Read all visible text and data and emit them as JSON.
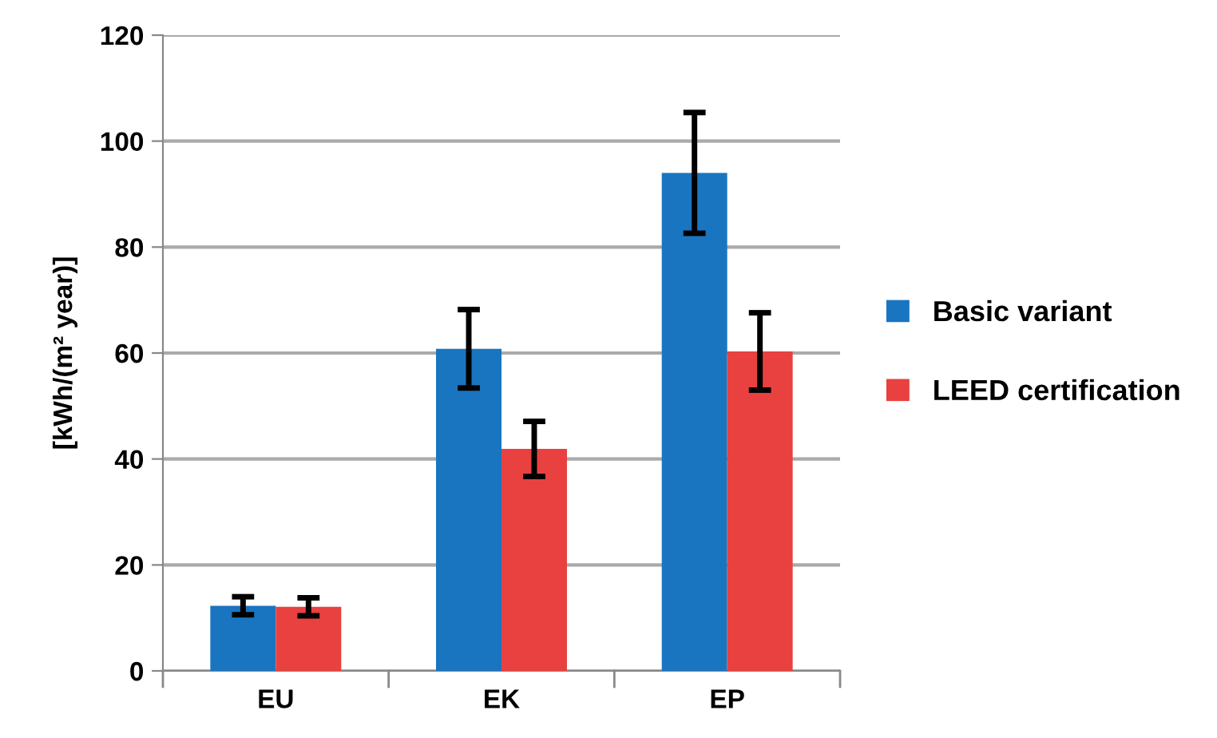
{
  "chart_data": {
    "type": "bar",
    "ylabel": "[kWh/(m² year)]",
    "categories": [
      "EU",
      "EK",
      "EP"
    ],
    "series": [
      {
        "name": "Basic variant",
        "color": "#1a75c0",
        "values": [
          12.3,
          60.8,
          94.0
        ],
        "errors": [
          1.7,
          7.4,
          11.4
        ]
      },
      {
        "name": "LEED certification",
        "color": "#e8413f",
        "values": [
          12.1,
          41.9,
          60.3
        ],
        "errors": [
          1.7,
          5.2,
          7.3
        ]
      }
    ],
    "ylim": [
      0,
      120
    ],
    "yticks": [
      0,
      20,
      40,
      60,
      80,
      100,
      120
    ],
    "grid": "y",
    "legend": "right"
  }
}
